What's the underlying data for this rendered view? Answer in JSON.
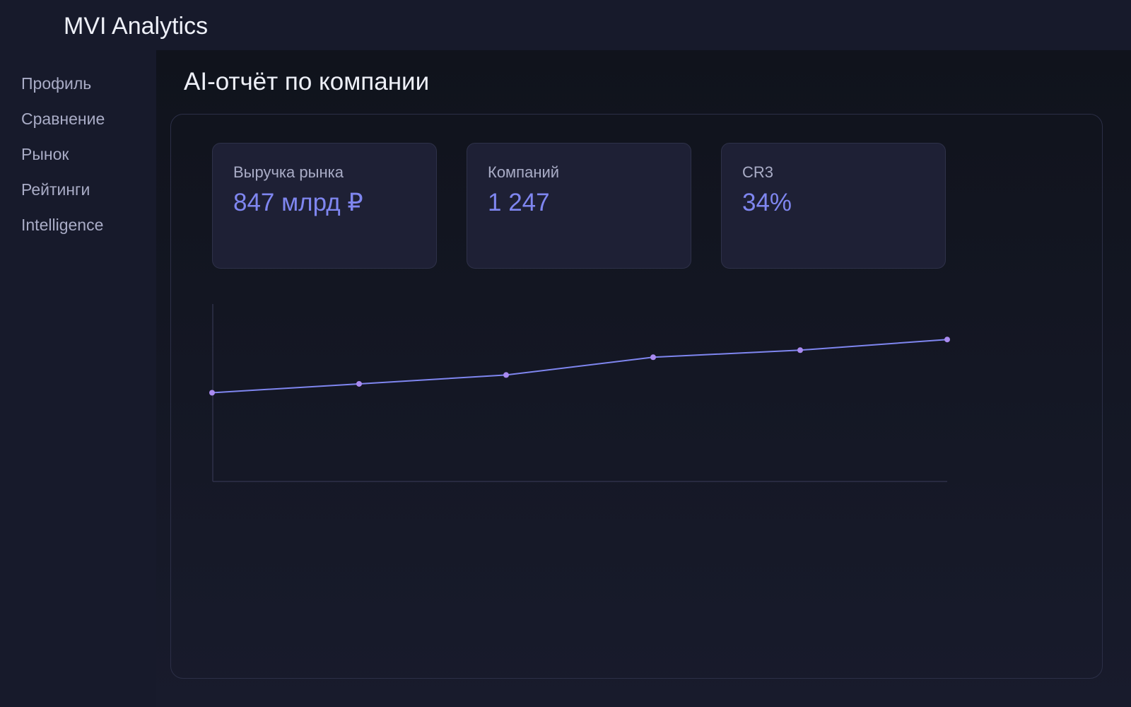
{
  "header": {
    "title": "MVI Analytics"
  },
  "sidebar": {
    "items": [
      "Профиль",
      "Сравнение",
      "Рынок",
      "Рейтинги",
      "Intelligence"
    ]
  },
  "main": {
    "title": "AI-отчёт по компании",
    "cards": [
      {
        "label": "Выручка рынка",
        "value": "847 млрд ₽"
      },
      {
        "label": "Компаний",
        "value": "1 247"
      },
      {
        "label": "CR3",
        "value": "34%"
      }
    ],
    "chart": {
      "type": "line",
      "values": [
        50,
        55,
        60,
        70,
        74,
        80
      ],
      "ylim": [
        0,
        100
      ],
      "color": "#7f86f0",
      "marker_color": "#a98af0"
    }
  }
}
